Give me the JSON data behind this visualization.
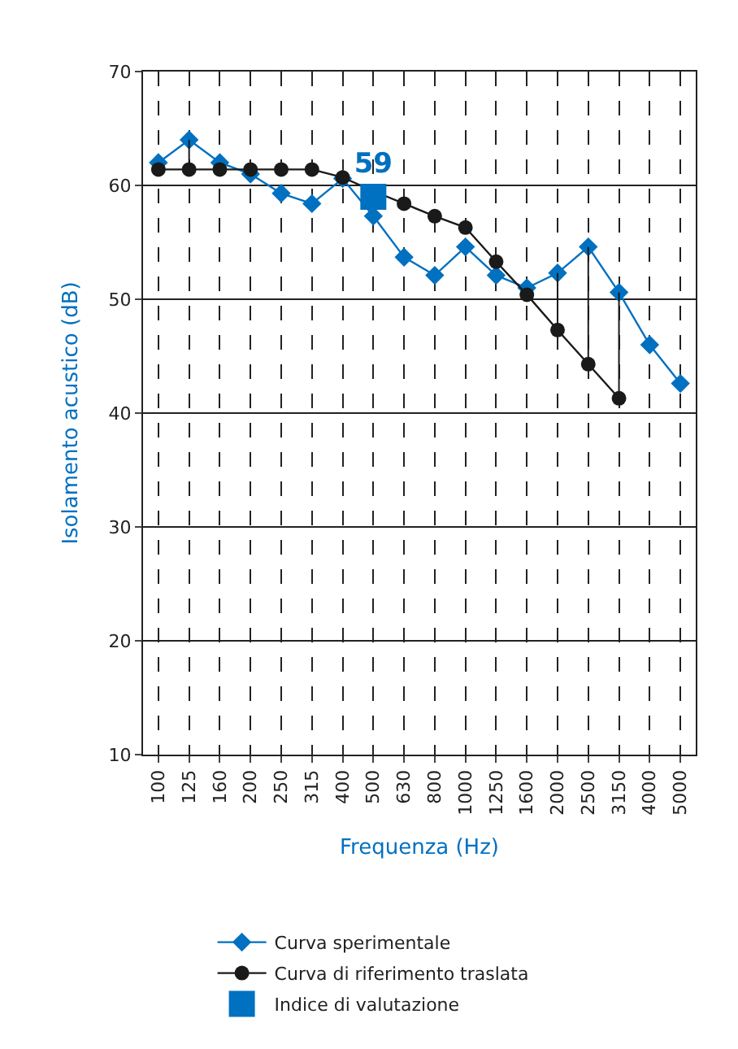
{
  "chart_data": {
    "type": "line",
    "xlabel": "Frequenza (Hz)",
    "ylabel": "Isolamento acustico (dB)",
    "categories": [
      "100",
      "125",
      "160",
      "200",
      "250",
      "315",
      "400",
      "500",
      "630",
      "800",
      "1000",
      "1250",
      "1600",
      "2000",
      "2500",
      "3150",
      "4000",
      "5000"
    ],
    "series": [
      {
        "name": "Curva sperimentale",
        "color": "#0070c0",
        "marker": "diamond",
        "values": [
          62,
          64,
          62,
          61,
          59.3,
          58.4,
          60.6,
          57.3,
          53.7,
          52.1,
          54.6,
          52.1,
          51,
          52.3,
          54.6,
          50.6,
          46,
          42.6
        ]
      },
      {
        "name": "Curva di riferimento traslata",
        "color": "#1a1a1a",
        "marker": "circle",
        "values": [
          61.4,
          61.4,
          61.4,
          61.4,
          61.4,
          61.4,
          60.7,
          59.5,
          58.4,
          57.3,
          56.3,
          53.3,
          50.4,
          47.3,
          44.3,
          41.3,
          null,
          null
        ],
        "errors": [
          null,
          [
            61.4,
            64
          ],
          null,
          null,
          null,
          null,
          null,
          null,
          null,
          null,
          null,
          null,
          null,
          [
            47.3,
            52.3
          ],
          [
            44.3,
            54.6
          ],
          [
            41.3,
            50.6
          ],
          null,
          null
        ]
      },
      {
        "name": "Indice di valutazione",
        "type": "scatter",
        "color": "#0070c0",
        "marker": "square",
        "x": [
          "500"
        ],
        "values": [
          59
        ],
        "value_labels": [
          "59"
        ]
      }
    ],
    "ylim": [
      10,
      70
    ],
    "yticks": [
      10,
      20,
      30,
      40,
      50,
      60,
      70
    ],
    "grid": true,
    "legend": "bottom"
  }
}
